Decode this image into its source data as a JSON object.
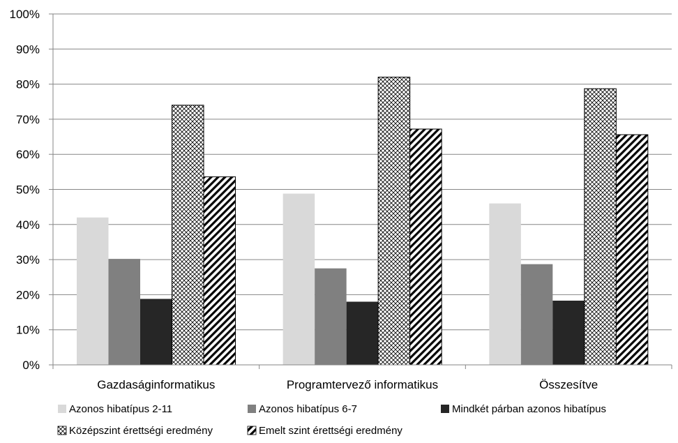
{
  "chart_data": {
    "type": "bar",
    "title": "",
    "xlabel": "",
    "ylabel": "",
    "ylim": [
      0,
      100
    ],
    "yticks": [
      "0%",
      "10%",
      "20%",
      "30%",
      "40%",
      "50%",
      "60%",
      "70%",
      "80%",
      "90%",
      "100%"
    ],
    "grid": true,
    "legend_position": "bottom",
    "categories": [
      "Gazdaságinformatikus",
      "Programtervező informatikus",
      "Összesítve"
    ],
    "series": [
      {
        "name": "Azonos hibatípus 2-11",
        "values": [
          42,
          48.8,
          46
        ],
        "color": "#d9d9d9",
        "pattern": "solid"
      },
      {
        "name": "Azonos hibatípus 6-7",
        "values": [
          30.2,
          27.5,
          28.7
        ],
        "color": "#808080",
        "pattern": "solid"
      },
      {
        "name": "Mindkét párban azonos hibatípus",
        "values": [
          18.8,
          18,
          18.3
        ],
        "color": "#262626",
        "pattern": "solid"
      },
      {
        "name": "Középszint érettségi eredmény",
        "values": [
          74,
          82,
          78.7
        ],
        "color": "#000000",
        "pattern": "crosshatch"
      },
      {
        "name": "Emelt szint érettségi eredmény",
        "values": [
          53.6,
          67.2,
          65.6
        ],
        "color": "#000000",
        "pattern": "diagonal"
      }
    ]
  }
}
